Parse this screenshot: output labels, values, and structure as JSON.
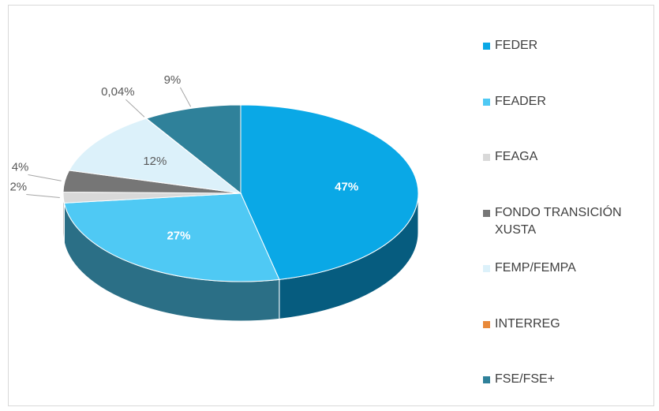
{
  "chart_data": {
    "type": "pie",
    "categories": [
      "FEDER",
      "FEADER",
      "FEAGA",
      "FONDO TRANSICIÓN XUSTA",
      "FEMP/FEMPA",
      "INTERREG",
      "FSE/FSE+"
    ],
    "values": [
      47,
      27,
      2,
      4,
      12,
      0.04,
      9
    ],
    "value_labels": [
      "47%",
      "27%",
      "2%",
      "4%",
      "12%",
      "0,04%",
      "9%"
    ],
    "colors": [
      "#0aa8e6",
      "#4fc9f4",
      "#d9d9d9",
      "#767676",
      "#dcf1fa",
      "#e8893a",
      "#2f819a"
    ],
    "legend": "right"
  }
}
